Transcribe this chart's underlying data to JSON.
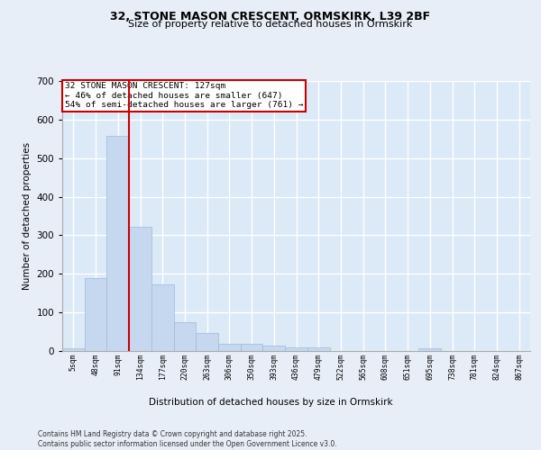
{
  "title1": "32, STONE MASON CRESCENT, ORMSKIRK, L39 2BF",
  "title2": "Size of property relative to detached houses in Ormskirk",
  "xlabel": "Distribution of detached houses by size in Ormskirk",
  "ylabel": "Number of detached properties",
  "bins": [
    "5sqm",
    "48sqm",
    "91sqm",
    "134sqm",
    "177sqm",
    "220sqm",
    "263sqm",
    "306sqm",
    "350sqm",
    "393sqm",
    "436sqm",
    "479sqm",
    "522sqm",
    "565sqm",
    "608sqm",
    "651sqm",
    "695sqm",
    "738sqm",
    "781sqm",
    "824sqm",
    "867sqm"
  ],
  "values": [
    8,
    188,
    557,
    323,
    172,
    75,
    47,
    18,
    18,
    14,
    10,
    10,
    0,
    0,
    0,
    0,
    6,
    0,
    0,
    0,
    0
  ],
  "bar_color": "#c5d8f0",
  "bar_edge_color": "#a0b8d8",
  "vline_color": "#cc0000",
  "annotation_text": "32 STONE MASON CRESCENT: 127sqm\n← 46% of detached houses are smaller (647)\n54% of semi-detached houses are larger (761) →",
  "annotation_box_color": "#ffffff",
  "annotation_box_edge": "#cc0000",
  "background_color": "#dce9f7",
  "grid_color": "#ffffff",
  "footer": "Contains HM Land Registry data © Crown copyright and database right 2025.\nContains public sector information licensed under the Open Government Licence v3.0.",
  "ylim": [
    0,
    700
  ],
  "yticks": [
    0,
    100,
    200,
    300,
    400,
    500,
    600,
    700
  ],
  "fig_bg": "#e8eef8"
}
